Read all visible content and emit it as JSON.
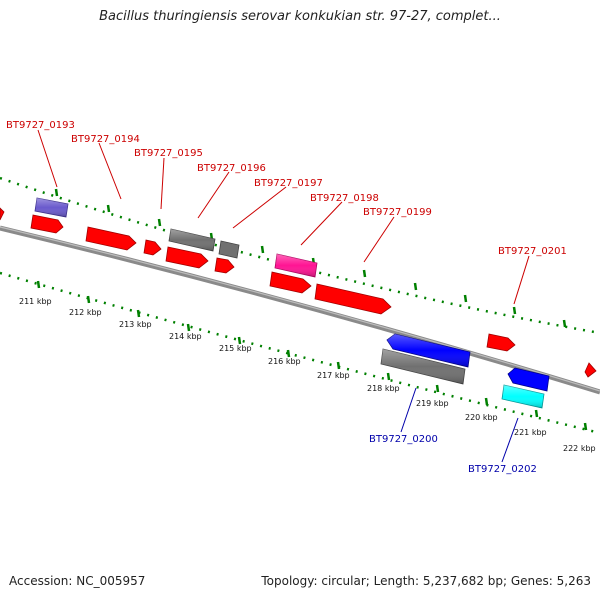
{
  "title": "Bacillus thuringiensis serovar konkukian str. 97-27, complet...",
  "footer": {
    "accession": "Accession: NC_005957",
    "summary": "Topology: circular; Length: 5,237,682 bp; Genes: 5,263"
  },
  "colors": {
    "backbone": "#8a8a8a",
    "forward_cds": "#ff0000",
    "reverse_cds": "#0000ff",
    "gray_feature": "#707070",
    "purple_feature": "#6a5acd",
    "magenta_feature": "#ff1493",
    "cyan_feature": "#00ffff",
    "tick_marks": "#008000",
    "label_forward": "#cc0000",
    "label_reverse": "#0000aa"
  },
  "icons": [
    "forward-arrow-icon",
    "reverse-arrow-icon"
  ],
  "gene_labels": [
    {
      "id": "BT9727_0193",
      "strand": "forward"
    },
    {
      "id": "BT9727_0194",
      "strand": "forward"
    },
    {
      "id": "BT9727_0195",
      "strand": "forward"
    },
    {
      "id": "BT9727_0196",
      "strand": "forward"
    },
    {
      "id": "BT9727_0197",
      "strand": "forward"
    },
    {
      "id": "BT9727_0198",
      "strand": "forward"
    },
    {
      "id": "BT9727_0199",
      "strand": "forward"
    },
    {
      "id": "BT9727_0201",
      "strand": "forward"
    },
    {
      "id": "BT9727_0200",
      "strand": "reverse"
    },
    {
      "id": "BT9727_0202",
      "strand": "reverse"
    }
  ],
  "ruler_labels": [
    "211 kbp",
    "212 kbp",
    "213 kbp",
    "214 kbp",
    "215 kbp",
    "216 kbp",
    "217 kbp",
    "218 kbp",
    "219 kbp",
    "220 kbp",
    "221 kbp",
    "222 kbp"
  ]
}
